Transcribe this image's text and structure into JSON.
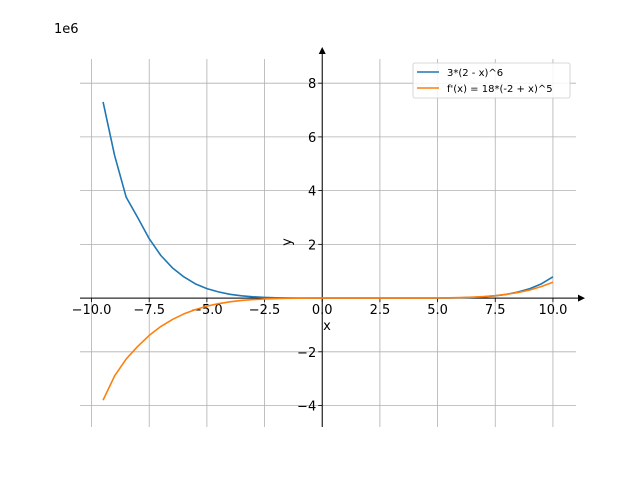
{
  "chart_data": {
    "type": "line",
    "title": "",
    "xlabel": "x",
    "ylabel": "y",
    "offset_label": "1e6",
    "scale": 1000000,
    "xlim": [
      -10.5,
      11
    ],
    "ylim": [
      -4.8,
      8.9
    ],
    "x_ticks": [
      -10.0,
      -7.5,
      -5.0,
      -2.5,
      0.0,
      2.5,
      5.0,
      7.5,
      10.0
    ],
    "x_tick_labels": [
      "−10.0",
      "−7.5",
      "−5.0",
      "−2.5",
      "0.0",
      "2.5",
      "5.0",
      "7.5",
      "10.0"
    ],
    "y_ticks": [
      -4,
      -2,
      0,
      2,
      4,
      6,
      8
    ],
    "y_tick_labels": [
      "−4",
      "−2",
      "0",
      "2",
      "4",
      "6",
      "8"
    ],
    "grid": true,
    "legend_position": "top-right",
    "series": [
      {
        "name": "3*(2 - x)^6",
        "color": "#1f77b4",
        "x": [
          -9.5,
          -9,
          -8.5,
          -8,
          -7.5,
          -7,
          -6.5,
          -6,
          -5.5,
          -5,
          -4.5,
          -4,
          -3.5,
          -3,
          -2.5,
          -2,
          -1.5,
          -1,
          -0.5,
          0,
          0.5,
          1,
          1.5,
          2,
          2.5,
          3,
          3.5,
          4,
          4.5,
          5,
          5.5,
          6,
          6.5,
          7,
          7.5,
          8,
          8.5,
          9,
          9.5,
          10
        ],
        "y": [
          7.3,
          5.31,
          3.76,
          3.0,
          2.21,
          1.59,
          1.13,
          0.79,
          0.53,
          0.35,
          0.23,
          0.14,
          0.083,
          0.047,
          0.025,
          0.012,
          0.0055,
          0.0022,
          0.0007,
          0.0002,
          0.0,
          0.0,
          0.0,
          0.0,
          0.0,
          0.0,
          0.0,
          0.0002,
          0.0007,
          0.0022,
          0.0055,
          0.012,
          0.025,
          0.047,
          0.083,
          0.14,
          0.23,
          0.35,
          0.53,
          0.79
        ]
      },
      {
        "name": "f'(x) = 18*(-2 + x)^5",
        "color": "#ff7f0e",
        "x": [
          -9.5,
          -9,
          -8.5,
          -8,
          -7.5,
          -7,
          -6.5,
          -6,
          -5.5,
          -5,
          -4.5,
          -4,
          -3.5,
          -3,
          -2.5,
          -2,
          -1.5,
          -1,
          -0.5,
          0,
          0.5,
          1,
          1.5,
          2,
          2.5,
          3,
          3.5,
          4,
          4.5,
          5,
          5.5,
          6,
          6.5,
          7,
          7.5,
          8,
          8.5,
          9,
          9.5,
          10
        ],
        "y": [
          -3.8,
          -2.9,
          -2.27,
          -1.8,
          -1.39,
          -1.06,
          -0.8,
          -0.59,
          -0.43,
          -0.3,
          -0.21,
          -0.14,
          -0.09,
          -0.056,
          -0.033,
          -0.018,
          -0.0095,
          -0.0044,
          -0.0018,
          -0.0006,
          -0.0001,
          0.0,
          0.0,
          0.0,
          0.0,
          0.0,
          0.0001,
          0.0006,
          0.0018,
          0.0044,
          0.0095,
          0.018,
          0.033,
          0.056,
          0.09,
          0.14,
          0.21,
          0.3,
          0.43,
          0.59
        ]
      }
    ]
  }
}
